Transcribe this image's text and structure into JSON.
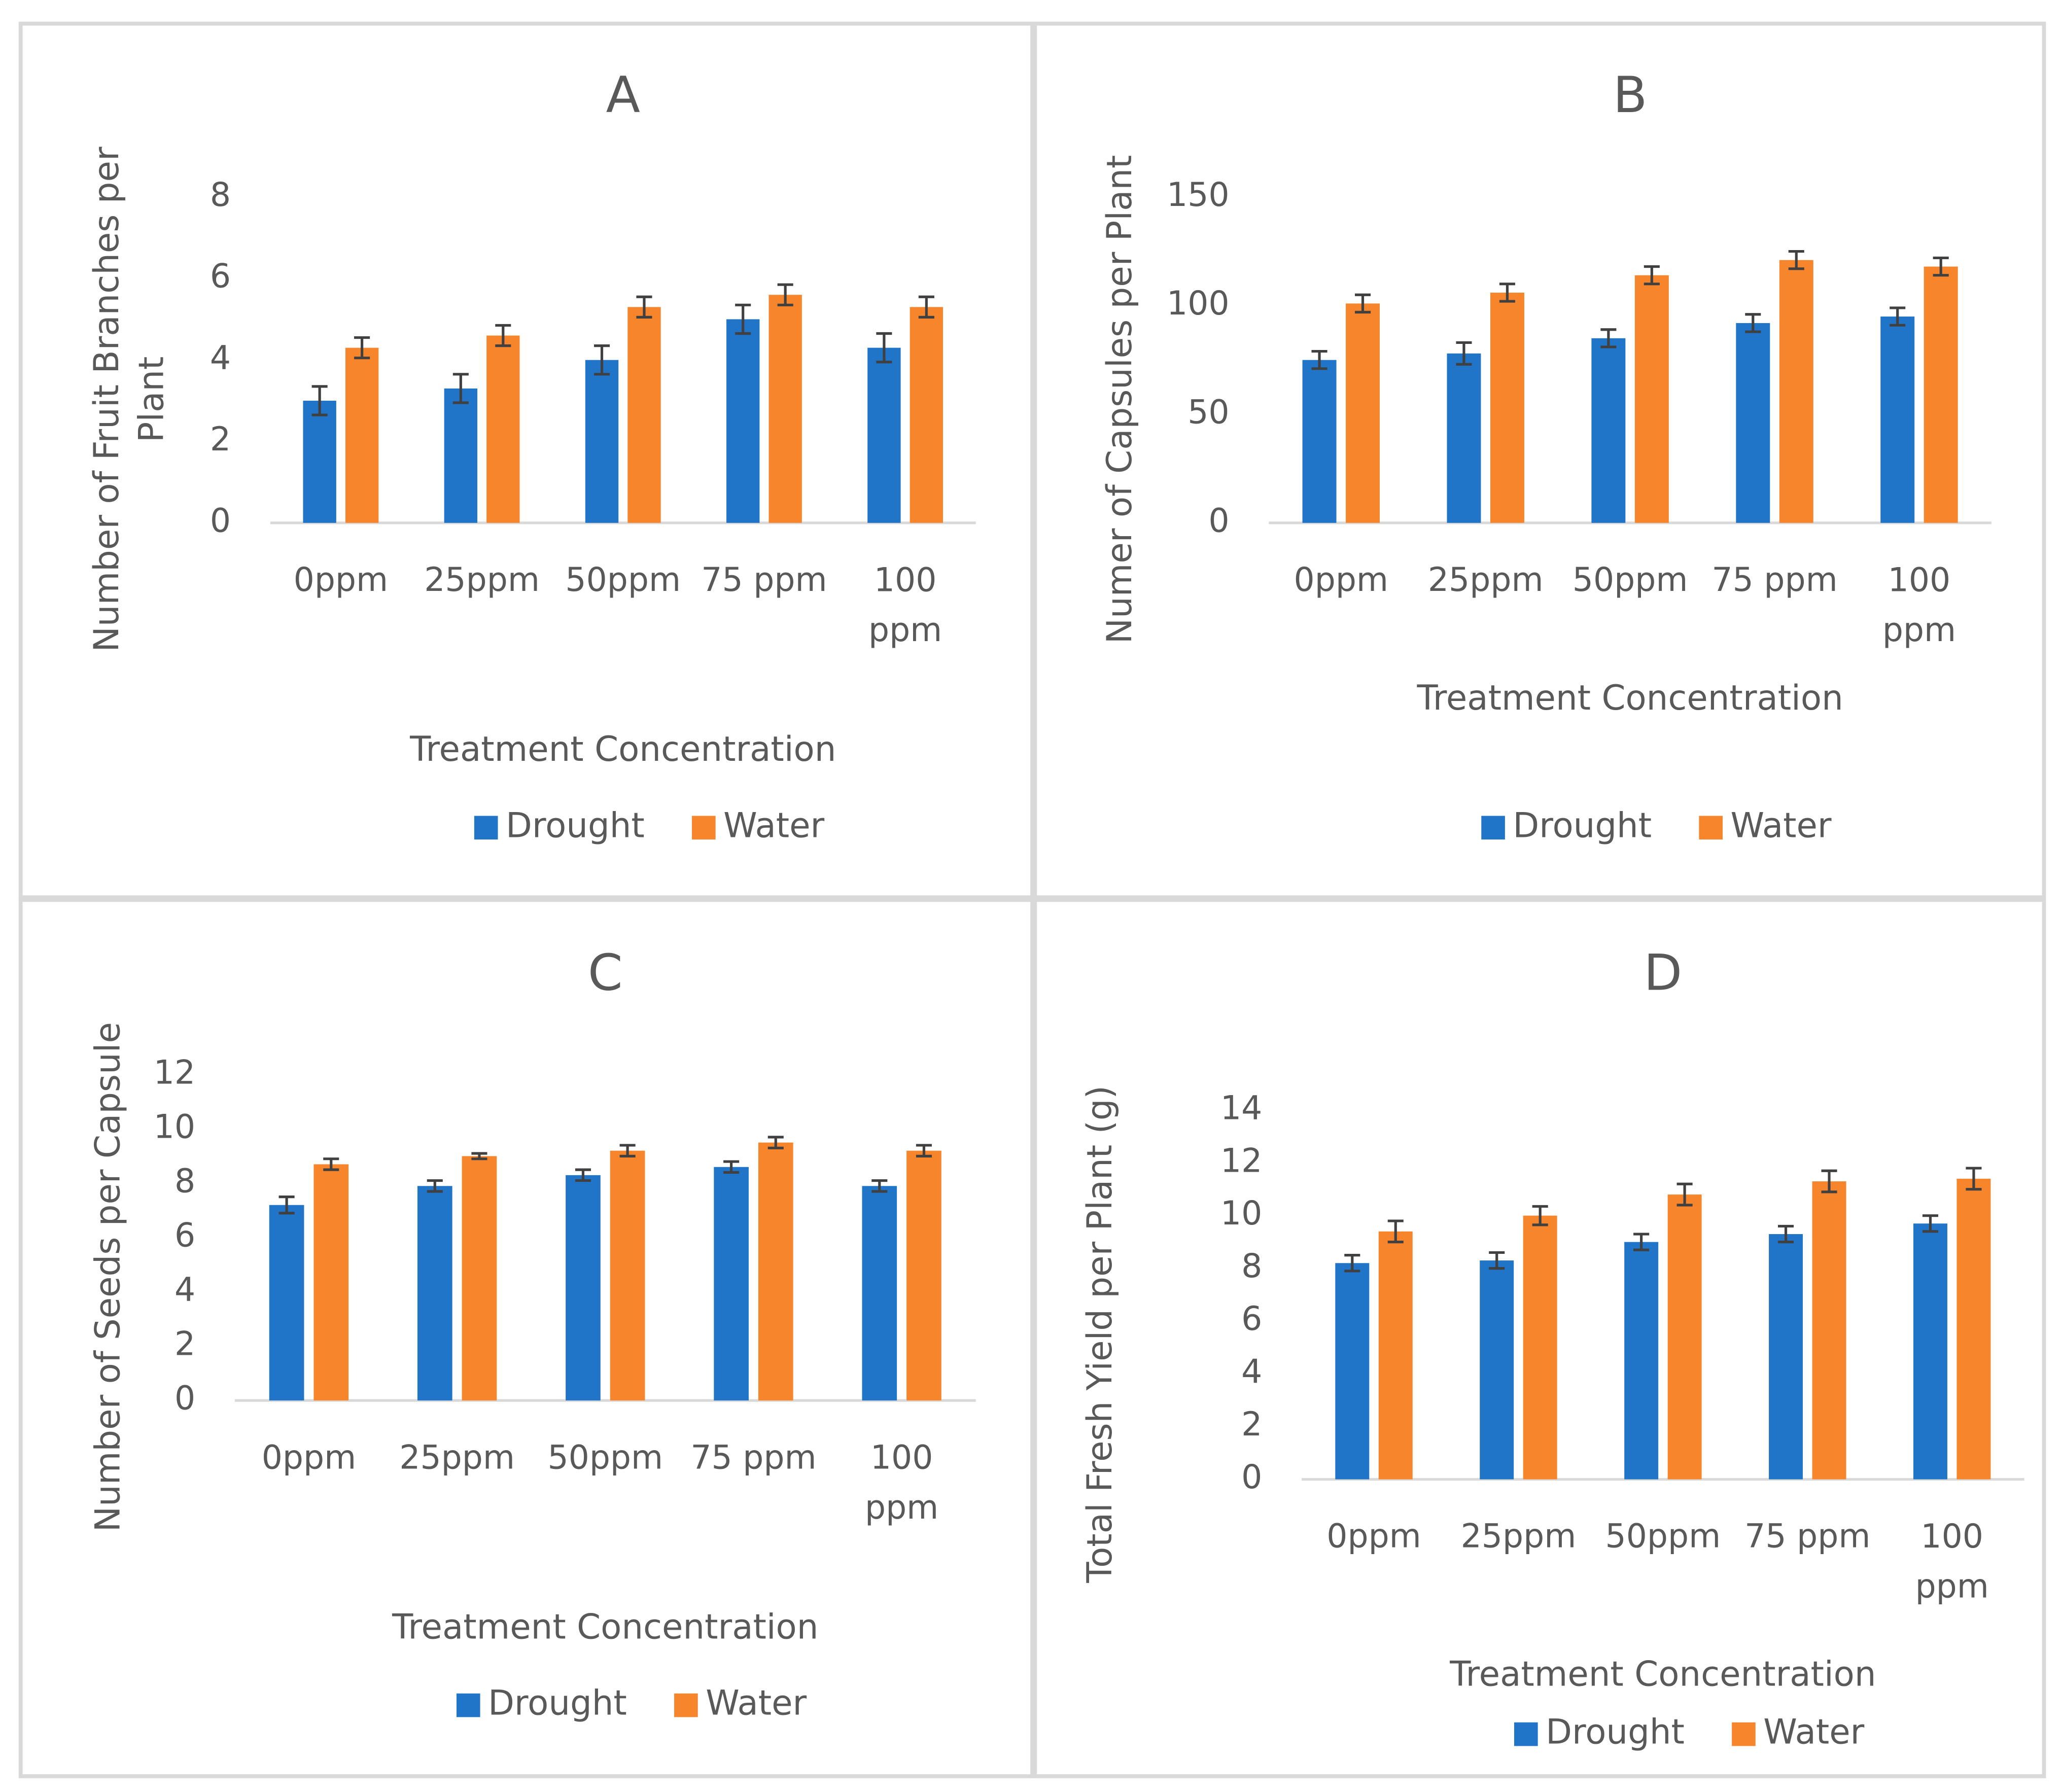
{
  "chart_data": [
    {
      "type": "bar",
      "title": "A",
      "y_label": "Number of Fruit Branches per Plant",
      "x_label": "Treatment Concentration",
      "categories": [
        "0ppm",
        "25ppm",
        "50ppm",
        "75 ppm",
        "100 ppm"
      ],
      "series": [
        {
          "name": "Drought",
          "color": "#2175c8",
          "values": [
            3.0,
            3.3,
            4.0,
            5.0,
            4.3
          ],
          "errors": [
            0.35,
            0.35,
            0.35,
            0.35,
            0.35
          ]
        },
        {
          "name": "Water",
          "color": "#f7852c",
          "values": [
            4.3,
            4.6,
            5.3,
            5.6,
            5.3
          ],
          "errors": [
            0.25,
            0.25,
            0.25,
            0.25,
            0.25
          ]
        }
      ],
      "ylim": [
        0,
        8
      ],
      "yticks": [
        0,
        2,
        4,
        6,
        8
      ],
      "grid": false,
      "legend": "bottom"
    },
    {
      "type": "bar",
      "title": "B",
      "y_label": "Numer of Capsules per Plant",
      "x_label": "Treatment Concentration",
      "categories": [
        "0ppm",
        "25ppm",
        "50ppm",
        "75 ppm",
        "100 ppm"
      ],
      "series": [
        {
          "name": "Drought",
          "color": "#2175c8",
          "values": [
            75,
            78,
            85,
            92,
            95
          ],
          "errors": [
            4,
            5,
            4,
            4,
            4
          ]
        },
        {
          "name": "Water",
          "color": "#f7852c",
          "values": [
            101,
            106,
            114,
            121,
            118
          ],
          "errors": [
            4,
            4,
            4,
            4,
            4
          ]
        }
      ],
      "ylim": [
        0,
        150
      ],
      "yticks": [
        0,
        50,
        100,
        150
      ],
      "grid": false,
      "legend": "bottom"
    },
    {
      "type": "bar",
      "title": "C",
      "y_label": "Number of Seeds per Capsule",
      "x_label": "Treatment Concentration",
      "categories": [
        "0ppm",
        "25ppm",
        "50ppm",
        "75 ppm",
        "100 ppm"
      ],
      "series": [
        {
          "name": "Drought",
          "color": "#2175c8",
          "values": [
            7.2,
            7.9,
            8.3,
            8.6,
            7.9
          ],
          "errors": [
            0.3,
            0.2,
            0.2,
            0.2,
            0.2
          ]
        },
        {
          "name": "Water",
          "color": "#f7852c",
          "values": [
            8.7,
            9.0,
            9.2,
            9.5,
            9.2
          ],
          "errors": [
            0.2,
            0.1,
            0.2,
            0.2,
            0.2
          ]
        }
      ],
      "ylim": [
        0,
        12
      ],
      "yticks": [
        0,
        2,
        4,
        6,
        8,
        10,
        12
      ],
      "grid": false,
      "legend": "bottom"
    },
    {
      "type": "bar",
      "title": "D",
      "y_label": "Total Fresh Yield per Plant (g)",
      "x_label": "Treatment Concentration",
      "categories": [
        "0ppm",
        "25ppm",
        "50ppm",
        "75 ppm",
        "100 ppm"
      ],
      "series": [
        {
          "name": "Drought",
          "color": "#2175c8",
          "values": [
            8.2,
            8.3,
            9.0,
            9.3,
            9.7
          ],
          "errors": [
            0.3,
            0.3,
            0.3,
            0.3,
            0.3
          ]
        },
        {
          "name": "Water",
          "color": "#f7852c",
          "values": [
            9.4,
            10.0,
            10.8,
            11.3,
            11.4
          ],
          "errors": [
            0.4,
            0.35,
            0.4,
            0.4,
            0.4
          ]
        }
      ],
      "ylim": [
        0,
        14
      ],
      "yticks": [
        0,
        2,
        4,
        6,
        8,
        10,
        12,
        14
      ],
      "grid": false,
      "legend": "bottom"
    }
  ]
}
